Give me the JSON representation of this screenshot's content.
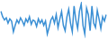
{
  "chart_data": {
    "type": "line",
    "categories": [
      null,
      null,
      null,
      null,
      null,
      null,
      null,
      null,
      null,
      null,
      null,
      null,
      null,
      null,
      null,
      null,
      null,
      null,
      null,
      null,
      null,
      null,
      null,
      null,
      null,
      null,
      null,
      null,
      null,
      null,
      null,
      null,
      null,
      null,
      null,
      null,
      null,
      null,
      null,
      null,
      null,
      null,
      null,
      null,
      null,
      null,
      null,
      null,
      null,
      null,
      null,
      null,
      null,
      null,
      null,
      null,
      null,
      null,
      null,
      null
    ],
    "values": [
      33,
      28,
      25,
      27,
      22,
      26,
      24,
      14,
      20,
      25,
      22,
      27,
      24,
      20,
      26,
      23,
      28,
      21,
      25,
      24,
      19,
      26,
      22,
      25,
      20,
      24,
      12,
      18,
      25,
      28,
      22,
      30,
      18,
      26,
      33,
      20,
      15,
      28,
      35,
      22,
      14,
      38,
      25,
      17,
      33,
      40,
      20,
      12,
      36,
      30,
      15,
      38,
      22,
      18,
      34,
      26,
      17,
      28,
      24,
      30
    ],
    "color": "#3a8fd4",
    "ylim": [
      8,
      42
    ],
    "grid": false,
    "tick_labels": false
  }
}
